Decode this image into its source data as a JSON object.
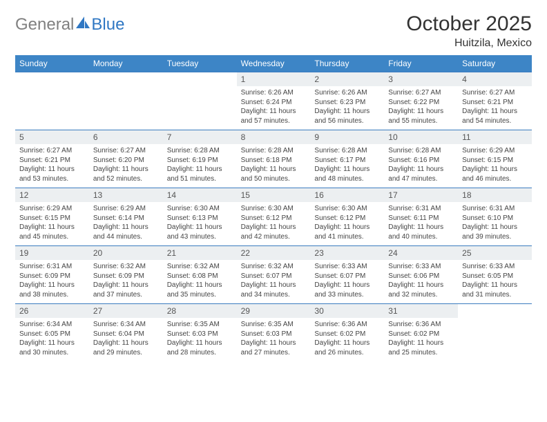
{
  "brand": {
    "text_gray": "General",
    "text_blue": "Blue",
    "gray_color": "#808080",
    "blue_color": "#2f77c3"
  },
  "header": {
    "month_title": "October 2025",
    "location": "Huitzila, Mexico",
    "title_color": "#333333"
  },
  "calendar": {
    "header_bg": "#3d85c6",
    "header_text_color": "#ffffff",
    "border_color": "#3a7bbf",
    "daynum_bg": "#eceff1",
    "body_text_color": "#444444",
    "days_of_week": [
      "Sunday",
      "Monday",
      "Tuesday",
      "Wednesday",
      "Thursday",
      "Friday",
      "Saturday"
    ],
    "weeks": [
      [
        {
          "blank": true
        },
        {
          "blank": true
        },
        {
          "blank": true
        },
        {
          "day": "1",
          "sunrise": "Sunrise: 6:26 AM",
          "sunset": "Sunset: 6:24 PM",
          "daylight": "Daylight: 11 hours and 57 minutes."
        },
        {
          "day": "2",
          "sunrise": "Sunrise: 6:26 AM",
          "sunset": "Sunset: 6:23 PM",
          "daylight": "Daylight: 11 hours and 56 minutes."
        },
        {
          "day": "3",
          "sunrise": "Sunrise: 6:27 AM",
          "sunset": "Sunset: 6:22 PM",
          "daylight": "Daylight: 11 hours and 55 minutes."
        },
        {
          "day": "4",
          "sunrise": "Sunrise: 6:27 AM",
          "sunset": "Sunset: 6:21 PM",
          "daylight": "Daylight: 11 hours and 54 minutes."
        }
      ],
      [
        {
          "day": "5",
          "sunrise": "Sunrise: 6:27 AM",
          "sunset": "Sunset: 6:21 PM",
          "daylight": "Daylight: 11 hours and 53 minutes."
        },
        {
          "day": "6",
          "sunrise": "Sunrise: 6:27 AM",
          "sunset": "Sunset: 6:20 PM",
          "daylight": "Daylight: 11 hours and 52 minutes."
        },
        {
          "day": "7",
          "sunrise": "Sunrise: 6:28 AM",
          "sunset": "Sunset: 6:19 PM",
          "daylight": "Daylight: 11 hours and 51 minutes."
        },
        {
          "day": "8",
          "sunrise": "Sunrise: 6:28 AM",
          "sunset": "Sunset: 6:18 PM",
          "daylight": "Daylight: 11 hours and 50 minutes."
        },
        {
          "day": "9",
          "sunrise": "Sunrise: 6:28 AM",
          "sunset": "Sunset: 6:17 PM",
          "daylight": "Daylight: 11 hours and 48 minutes."
        },
        {
          "day": "10",
          "sunrise": "Sunrise: 6:28 AM",
          "sunset": "Sunset: 6:16 PM",
          "daylight": "Daylight: 11 hours and 47 minutes."
        },
        {
          "day": "11",
          "sunrise": "Sunrise: 6:29 AM",
          "sunset": "Sunset: 6:15 PM",
          "daylight": "Daylight: 11 hours and 46 minutes."
        }
      ],
      [
        {
          "day": "12",
          "sunrise": "Sunrise: 6:29 AM",
          "sunset": "Sunset: 6:15 PM",
          "daylight": "Daylight: 11 hours and 45 minutes."
        },
        {
          "day": "13",
          "sunrise": "Sunrise: 6:29 AM",
          "sunset": "Sunset: 6:14 PM",
          "daylight": "Daylight: 11 hours and 44 minutes."
        },
        {
          "day": "14",
          "sunrise": "Sunrise: 6:30 AM",
          "sunset": "Sunset: 6:13 PM",
          "daylight": "Daylight: 11 hours and 43 minutes."
        },
        {
          "day": "15",
          "sunrise": "Sunrise: 6:30 AM",
          "sunset": "Sunset: 6:12 PM",
          "daylight": "Daylight: 11 hours and 42 minutes."
        },
        {
          "day": "16",
          "sunrise": "Sunrise: 6:30 AM",
          "sunset": "Sunset: 6:12 PM",
          "daylight": "Daylight: 11 hours and 41 minutes."
        },
        {
          "day": "17",
          "sunrise": "Sunrise: 6:31 AM",
          "sunset": "Sunset: 6:11 PM",
          "daylight": "Daylight: 11 hours and 40 minutes."
        },
        {
          "day": "18",
          "sunrise": "Sunrise: 6:31 AM",
          "sunset": "Sunset: 6:10 PM",
          "daylight": "Daylight: 11 hours and 39 minutes."
        }
      ],
      [
        {
          "day": "19",
          "sunrise": "Sunrise: 6:31 AM",
          "sunset": "Sunset: 6:09 PM",
          "daylight": "Daylight: 11 hours and 38 minutes."
        },
        {
          "day": "20",
          "sunrise": "Sunrise: 6:32 AM",
          "sunset": "Sunset: 6:09 PM",
          "daylight": "Daylight: 11 hours and 37 minutes."
        },
        {
          "day": "21",
          "sunrise": "Sunrise: 6:32 AM",
          "sunset": "Sunset: 6:08 PM",
          "daylight": "Daylight: 11 hours and 35 minutes."
        },
        {
          "day": "22",
          "sunrise": "Sunrise: 6:32 AM",
          "sunset": "Sunset: 6:07 PM",
          "daylight": "Daylight: 11 hours and 34 minutes."
        },
        {
          "day": "23",
          "sunrise": "Sunrise: 6:33 AM",
          "sunset": "Sunset: 6:07 PM",
          "daylight": "Daylight: 11 hours and 33 minutes."
        },
        {
          "day": "24",
          "sunrise": "Sunrise: 6:33 AM",
          "sunset": "Sunset: 6:06 PM",
          "daylight": "Daylight: 11 hours and 32 minutes."
        },
        {
          "day": "25",
          "sunrise": "Sunrise: 6:33 AM",
          "sunset": "Sunset: 6:05 PM",
          "daylight": "Daylight: 11 hours and 31 minutes."
        }
      ],
      [
        {
          "day": "26",
          "sunrise": "Sunrise: 6:34 AM",
          "sunset": "Sunset: 6:05 PM",
          "daylight": "Daylight: 11 hours and 30 minutes."
        },
        {
          "day": "27",
          "sunrise": "Sunrise: 6:34 AM",
          "sunset": "Sunset: 6:04 PM",
          "daylight": "Daylight: 11 hours and 29 minutes."
        },
        {
          "day": "28",
          "sunrise": "Sunrise: 6:35 AM",
          "sunset": "Sunset: 6:03 PM",
          "daylight": "Daylight: 11 hours and 28 minutes."
        },
        {
          "day": "29",
          "sunrise": "Sunrise: 6:35 AM",
          "sunset": "Sunset: 6:03 PM",
          "daylight": "Daylight: 11 hours and 27 minutes."
        },
        {
          "day": "30",
          "sunrise": "Sunrise: 6:36 AM",
          "sunset": "Sunset: 6:02 PM",
          "daylight": "Daylight: 11 hours and 26 minutes."
        },
        {
          "day": "31",
          "sunrise": "Sunrise: 6:36 AM",
          "sunset": "Sunset: 6:02 PM",
          "daylight": "Daylight: 11 hours and 25 minutes."
        },
        {
          "blank": true
        }
      ]
    ]
  }
}
